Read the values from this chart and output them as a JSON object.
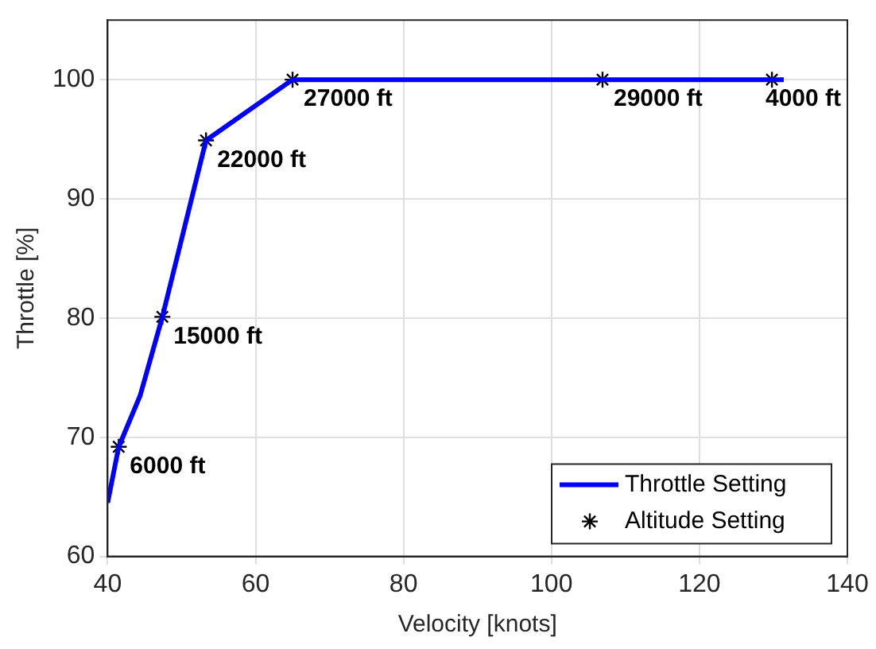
{
  "chart_data": {
    "type": "line",
    "xlabel": "Velocity [knots]",
    "ylabel": "Throttle [%]",
    "xlim": [
      40,
      140
    ],
    "ylim": [
      60,
      105
    ],
    "xticks": [
      40,
      60,
      80,
      100,
      120,
      140
    ],
    "yticks": [
      60,
      70,
      80,
      90,
      100
    ],
    "grid": true,
    "legend": "bottom right",
    "series": [
      {
        "name": "Throttle Setting",
        "type": "line",
        "color": "#0000ff",
        "marker": "none",
        "line_style": "solid",
        "x": [
          40,
          41.5,
          44.4,
          47.4,
          53.3,
          65,
          106.9,
          129.8,
          131.4
        ],
        "values": [
          64.5,
          69.2,
          73.5,
          80.1,
          94.9,
          100,
          100,
          100,
          100
        ]
      },
      {
        "name": "Altitude Setting",
        "type": "scatter",
        "color": "#000000",
        "marker": "cross",
        "x": [
          41.5,
          47.4,
          53.3,
          65,
          106.9,
          129.8
        ],
        "values": [
          69.2,
          80.1,
          94.9,
          100,
          100,
          100
        ]
      }
    ],
    "annotations": [
      {
        "text": "6000 ft",
        "x": 41.5,
        "y": 69.2
      },
      {
        "text": "15000 ft",
        "x": 47.4,
        "y": 80.1
      },
      {
        "text": "22000 ft",
        "x": 53.3,
        "y": 94.9
      },
      {
        "text": "27000 ft",
        "x": 65,
        "y": 100
      },
      {
        "text": "29000 ft",
        "x": 106.9,
        "y": 100
      },
      {
        "text": "4000 ft",
        "x": 129.8,
        "y": 100
      }
    ]
  }
}
